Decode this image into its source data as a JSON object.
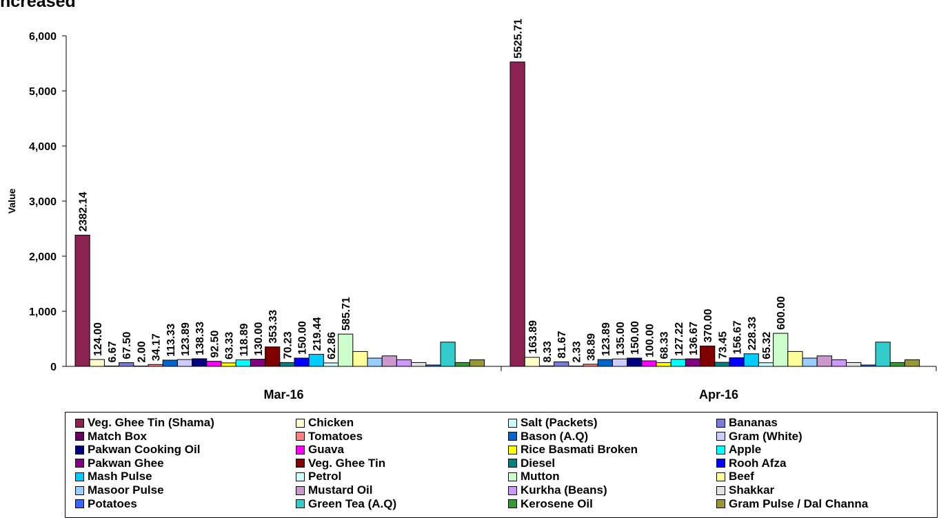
{
  "title": "ncreased",
  "chart_data": {
    "type": "bar",
    "ylabel": "Value",
    "xlabel": "",
    "ylim": [
      0,
      6000
    ],
    "yticks": [
      "0",
      "1,000",
      "2,000",
      "3,000",
      "4,000",
      "5,000",
      "6,000"
    ],
    "categories": [
      "Mar-16",
      "Apr-16"
    ],
    "legend_position": "bottom",
    "grid": false,
    "series": [
      {
        "name": "Veg. Ghee Tin (Shama)",
        "color": "#8B2252",
        "values": [
          2382.14,
          5525.71
        ],
        "labels": [
          "2382.14",
          "5525.71"
        ]
      },
      {
        "name": "Chicken",
        "color": "#FFFFCC",
        "values": [
          124.0,
          163.89
        ],
        "labels": [
          "124.00",
          "163.89"
        ]
      },
      {
        "name": "Salt (Packets)",
        "color": "#CCFFFF",
        "values": [
          6.67,
          8.33
        ],
        "labels": [
          "6.67",
          "8.33"
        ]
      },
      {
        "name": "Bananas",
        "color": "#7B7BD9",
        "values": [
          67.5,
          81.67
        ],
        "labels": [
          "67.50",
          "81.67"
        ]
      },
      {
        "name": "Match Box",
        "color": "#660066",
        "values": [
          2.0,
          2.33
        ],
        "labels": [
          "2.00",
          "2.33"
        ]
      },
      {
        "name": "Tomatoes",
        "color": "#FF8080",
        "values": [
          34.17,
          38.89
        ],
        "labels": [
          "34.17",
          "38.89"
        ]
      },
      {
        "name": "Bason (A.Q)",
        "color": "#0066CC",
        "values": [
          113.33,
          123.89
        ],
        "labels": [
          "113.33",
          "123.89"
        ]
      },
      {
        "name": "Gram (White)",
        "color": "#CCCCFF",
        "values": [
          123.89,
          135.0
        ],
        "labels": [
          "123.89",
          "135.00"
        ]
      },
      {
        "name": "Pakwan Cooking Oil",
        "color": "#000080",
        "values": [
          138.33,
          150.0
        ],
        "labels": [
          "138.33",
          "150.00"
        ]
      },
      {
        "name": "Guava",
        "color": "#FF00FF",
        "values": [
          92.5,
          100.0
        ],
        "labels": [
          "92.50",
          "100.00"
        ]
      },
      {
        "name": "Rice Basmati Broken",
        "color": "#FFFF00",
        "values": [
          63.33,
          68.33
        ],
        "labels": [
          "63.33",
          "68.33"
        ]
      },
      {
        "name": "Apple",
        "color": "#00FFFF",
        "values": [
          118.89,
          127.22
        ],
        "labels": [
          "118.89",
          "127.22"
        ]
      },
      {
        "name": "Pakwan Ghee",
        "color": "#800080",
        "values": [
          130.0,
          136.67
        ],
        "labels": [
          "130.00",
          "136.67"
        ]
      },
      {
        "name": "Veg. Ghee Tin",
        "color": "#800000",
        "values": [
          353.33,
          370.0
        ],
        "labels": [
          "353.33",
          "370.00"
        ]
      },
      {
        "name": "Diesel",
        "color": "#008080",
        "values": [
          70.23,
          73.45
        ],
        "labels": [
          "70.23",
          "73.45"
        ]
      },
      {
        "name": "Rooh Afza",
        "color": "#0000FF",
        "values": [
          150.0,
          156.67
        ],
        "labels": [
          "150.00",
          "156.67"
        ]
      },
      {
        "name": "Mash Pulse",
        "color": "#00CCFF",
        "values": [
          219.44,
          228.33
        ],
        "labels": [
          "219.44",
          "228.33"
        ]
      },
      {
        "name": "Petrol",
        "color": "#CCFFFF",
        "values": [
          62.86,
          65.32
        ],
        "labels": [
          "62.86",
          "65.32"
        ]
      },
      {
        "name": "Mutton",
        "color": "#CCFFCC",
        "values": [
          585.71,
          600.0
        ],
        "labels": [
          "585.71",
          "600.00"
        ]
      },
      {
        "name": "Beef",
        "color": "#FFFF99",
        "values": [
          270,
          270
        ],
        "labels": []
      },
      {
        "name": "Masoor Pulse",
        "color": "#99CCFF",
        "values": [
          150,
          150
        ],
        "labels": []
      },
      {
        "name": "Mustard Oil",
        "color": "#CC99CC",
        "values": [
          190,
          190
        ],
        "labels": []
      },
      {
        "name": "Kurkha (Beans)",
        "color": "#CC99FF",
        "values": [
          120,
          120
        ],
        "labels": []
      },
      {
        "name": "Shakkar",
        "color": "#E3E3E3",
        "values": [
          70,
          70
        ],
        "labels": []
      },
      {
        "name": "Potatoes",
        "color": "#3366FF",
        "values": [
          25,
          25
        ],
        "labels": []
      },
      {
        "name": "Green Tea (A.Q)",
        "color": "#33CCCC",
        "values": [
          440,
          440
        ],
        "labels": []
      },
      {
        "name": "Kerosene Oil",
        "color": "#339933",
        "values": [
          70,
          70
        ],
        "labels": []
      },
      {
        "name": "Gram Pulse / Dal Channa",
        "color": "#999933",
        "values": [
          120,
          120
        ],
        "labels": []
      }
    ]
  }
}
